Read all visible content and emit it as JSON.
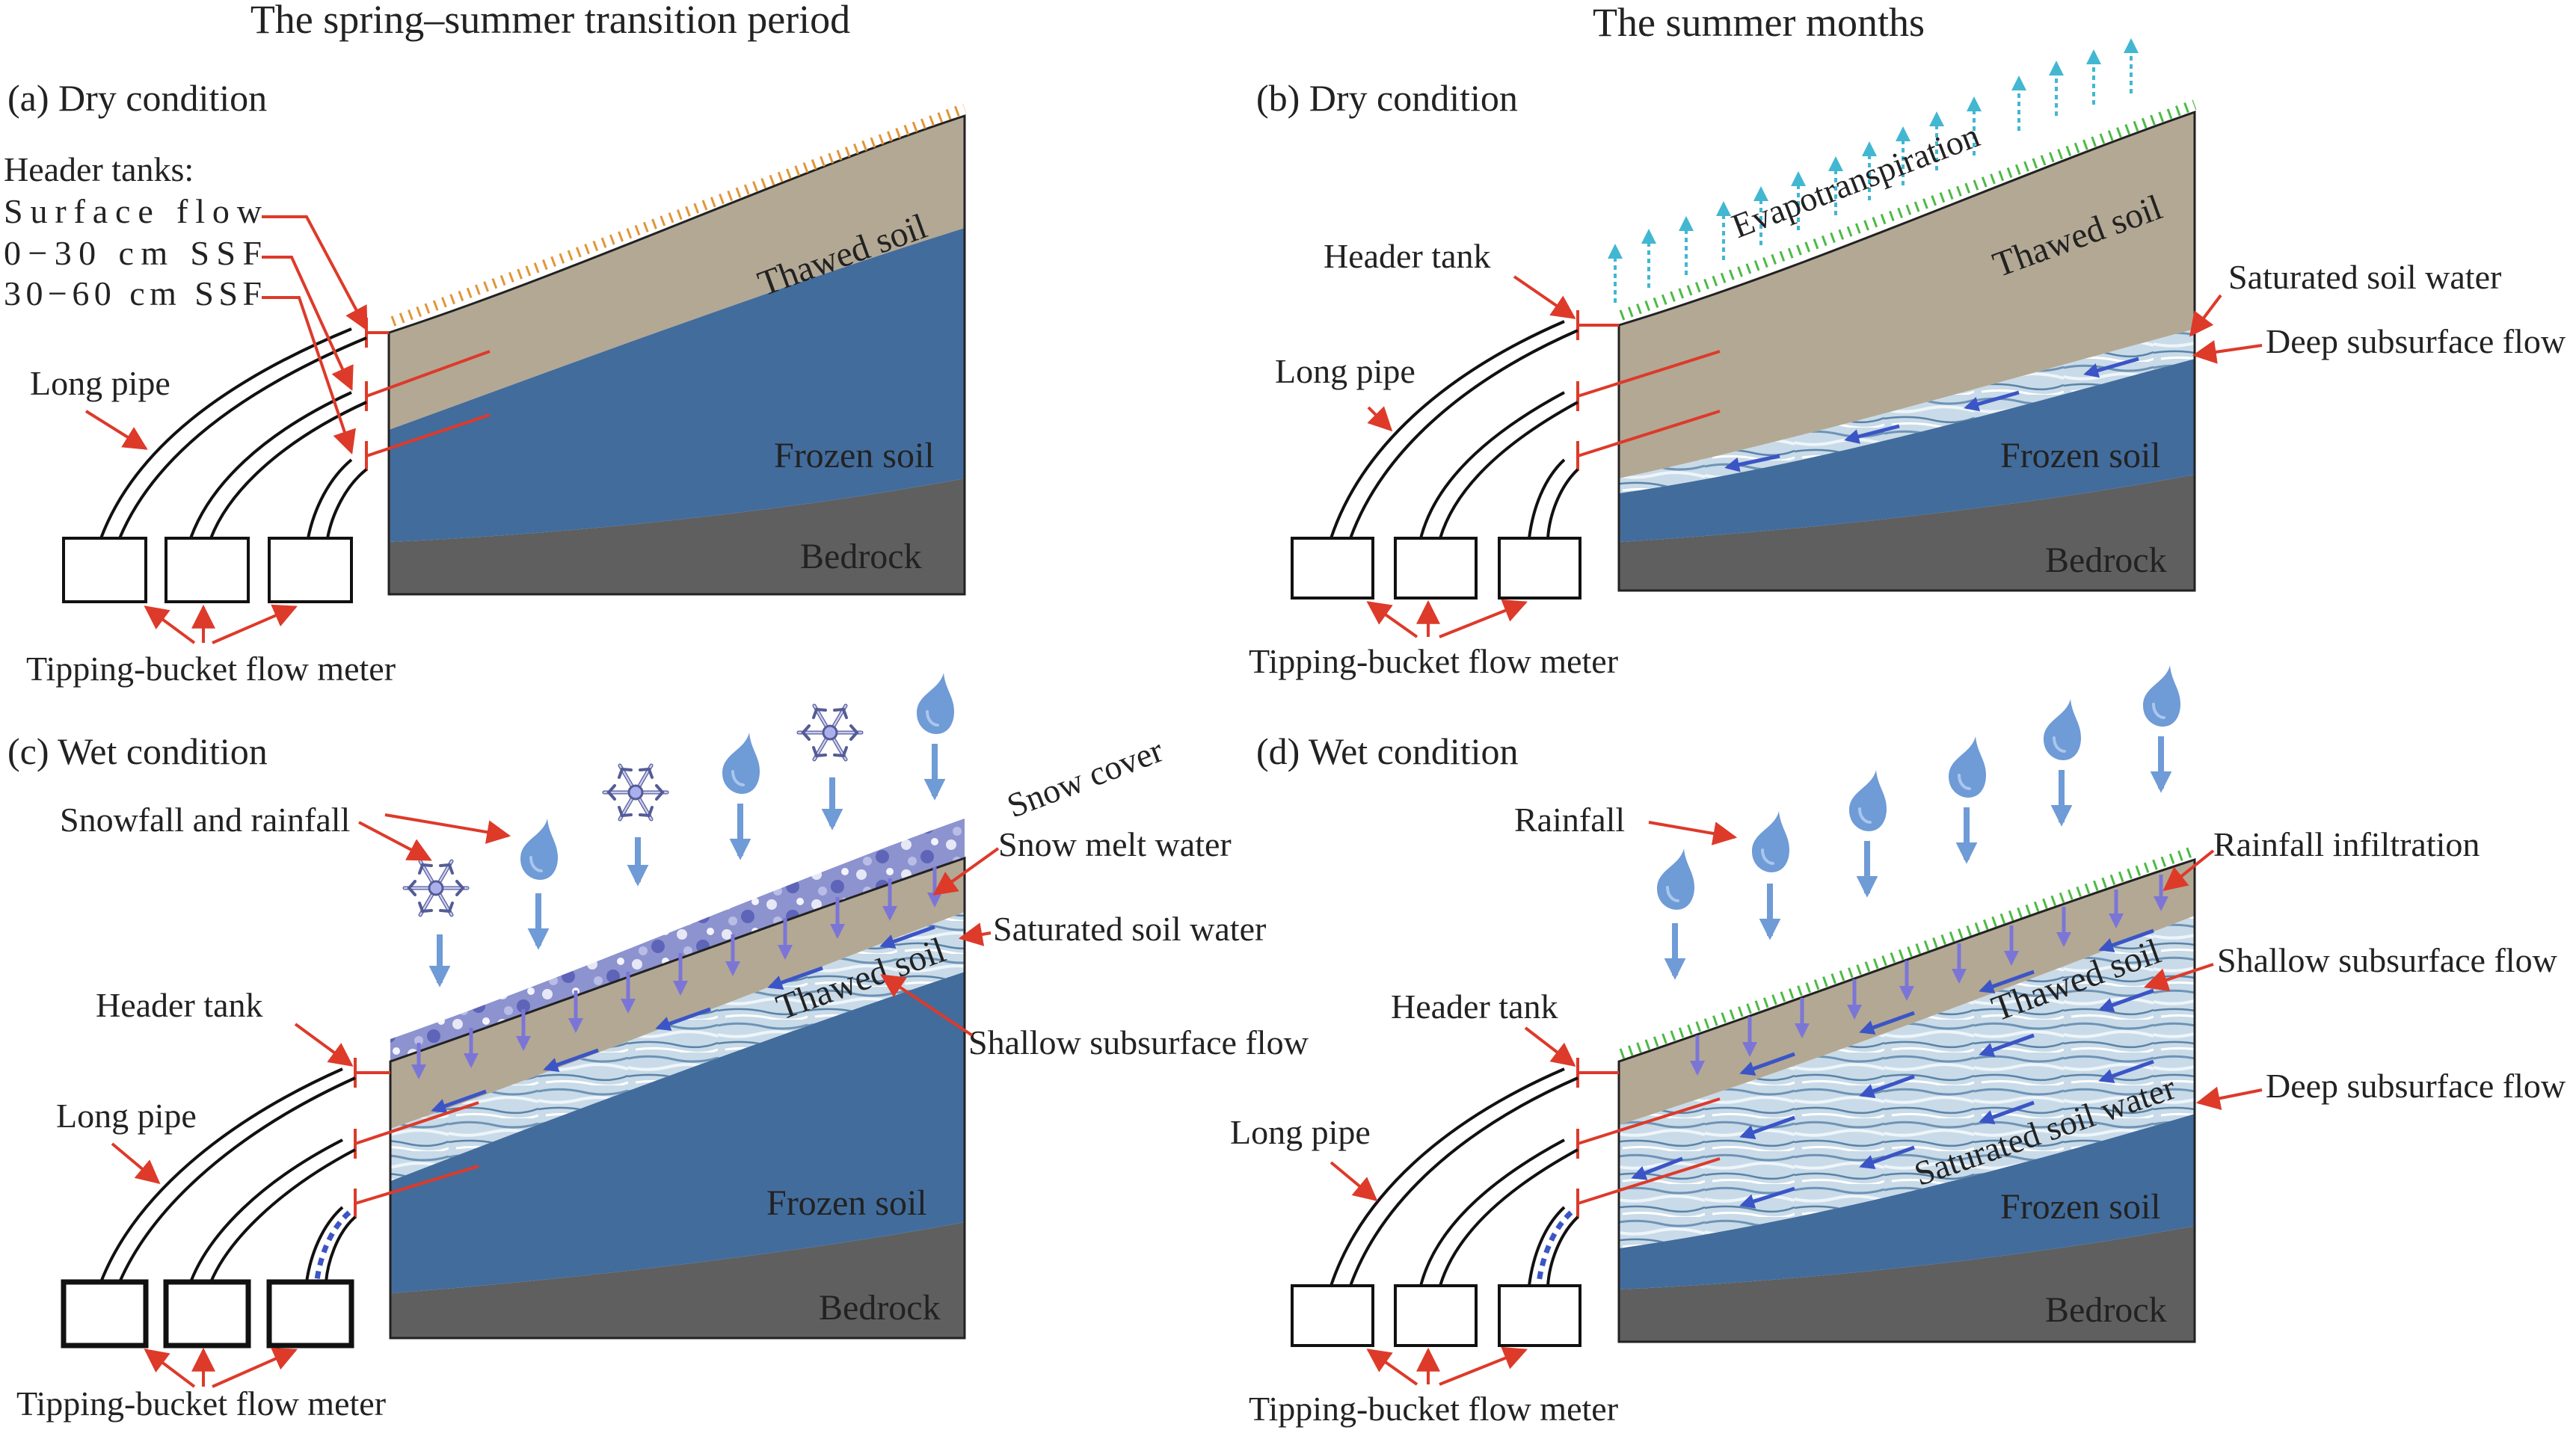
{
  "header": {
    "left_title": "The spring–summer transition period",
    "right_title": "The summer months"
  },
  "panels": {
    "a": {
      "label": "(a) Dry condition",
      "header_tanks": "Header tanks:",
      "surface_flow": "Surface flow",
      "ssf_0_30": "0−30 cm SSF",
      "ssf_30_60": "30−60 cm SSF",
      "long_pipe": "Long pipe",
      "thawed_soil": "Thawed soil",
      "frozen_soil": "Frozen soil",
      "bedrock": "Bedrock",
      "flow_meter": "Tipping-bucket flow meter"
    },
    "b": {
      "label": "(b) Dry condition",
      "evapotranspiration": "Evapotranspiration",
      "header_tank": "Header tank",
      "long_pipe": "Long pipe",
      "thawed_soil": "Thawed soil",
      "saturated_soil_water": "Saturated soil water",
      "deep_subsurface_flow": "Deep subsurface flow",
      "frozen_soil": "Frozen soil",
      "bedrock": "Bedrock",
      "flow_meter": "Tipping-bucket flow meter"
    },
    "c": {
      "label": "(c)  Wet condition",
      "snowfall_rainfall": "Snowfall and rainfall",
      "snow_cover": "Snow cover",
      "snow_melt_water": "Snow melt water",
      "saturated_soil_water": "Saturated soil water",
      "shallow_subsurface_flow": "Shallow subsurface flow",
      "header_tank": "Header tank",
      "long_pipe": "Long pipe",
      "thawed_soil": "Thawed soil",
      "frozen_soil": "Frozen soil",
      "bedrock": "Bedrock",
      "flow_meter": "Tipping-bucket flow meter"
    },
    "d": {
      "label": "(d) Wet condition",
      "rainfall": "Rainfall",
      "rainfall_infiltration": "Rainfall  infiltration",
      "shallow_subsurface_flow": "Shallow subsurface flow",
      "deep_subsurface_flow": "Deep subsurface flow",
      "saturated_soil_water": "Saturated soil water",
      "header_tank": "Header tank",
      "long_pipe": "Long pipe",
      "thawed_soil": "Thawed soil",
      "frozen_soil": "Frozen soil",
      "bedrock": "Bedrock",
      "flow_meter": "Tipping-bucket flow meter"
    }
  },
  "colors": {
    "thawed": "#b3a894",
    "frozen": "#426c9c",
    "bedrock": "#5f5f5f",
    "saturated": "#c9dbe8",
    "snow": "#8c93cf",
    "arrow_red": "#dd3a2a",
    "drop": "#6f9bd6",
    "et_arrow": "#42b7d2",
    "grass_green": "#4cba45",
    "grass_orange": "#e0963a"
  }
}
